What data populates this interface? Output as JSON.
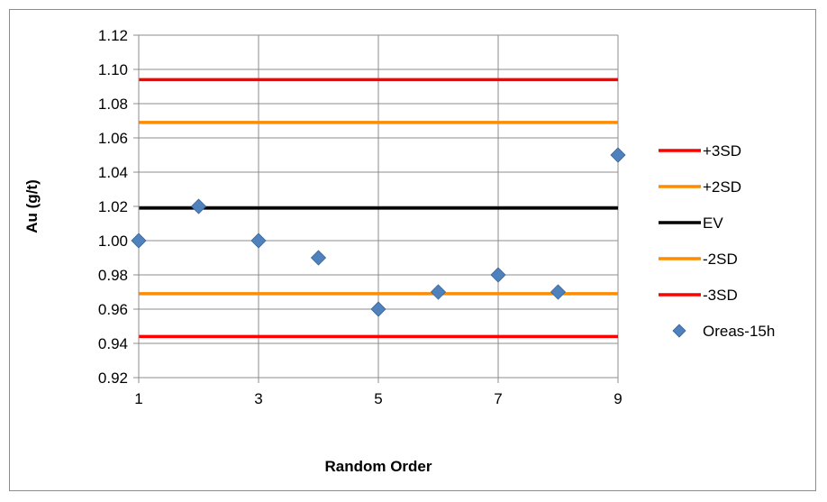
{
  "chart_data": {
    "type": "scatter",
    "title": "",
    "xlabel": "Random Order",
    "ylabel": "Au (g/t)",
    "xlim": [
      1,
      9
    ],
    "ylim": [
      0.92,
      1.12
    ],
    "x_ticks": [
      1,
      3,
      5,
      7,
      9
    ],
    "y_ticks": [
      0.92,
      0.94,
      0.96,
      0.98,
      1.0,
      1.02,
      1.04,
      1.06,
      1.08,
      1.1,
      1.12
    ],
    "y_tick_labels": [
      "0.92",
      "0.94",
      "0.96",
      "0.98",
      "1.00",
      "1.02",
      "1.04",
      "1.06",
      "1.08",
      "1.10",
      "1.12"
    ],
    "x_tick_labels": [
      "1",
      "3",
      "5",
      "7",
      "9"
    ],
    "grid": true,
    "legend_position": "right",
    "reference_lines": [
      {
        "name": "+3SD",
        "value": 1.094,
        "color": "#ff0000"
      },
      {
        "name": "+2SD",
        "value": 1.069,
        "color": "#ff8c00"
      },
      {
        "name": "EV",
        "value": 1.019,
        "color": "#000000"
      },
      {
        "name": "-2SD",
        "value": 0.969,
        "color": "#ff8c00"
      },
      {
        "name": "-3SD",
        "value": 0.944,
        "color": "#ff0000"
      }
    ],
    "series": [
      {
        "name": "Oreas-15h",
        "marker": "diamond",
        "color": "#4f81bd",
        "x": [
          1,
          2,
          3,
          4,
          5,
          6,
          7,
          8,
          9
        ],
        "y": [
          1.0,
          1.02,
          1.0,
          0.99,
          0.96,
          0.97,
          0.98,
          0.97,
          1.05
        ]
      }
    ]
  }
}
